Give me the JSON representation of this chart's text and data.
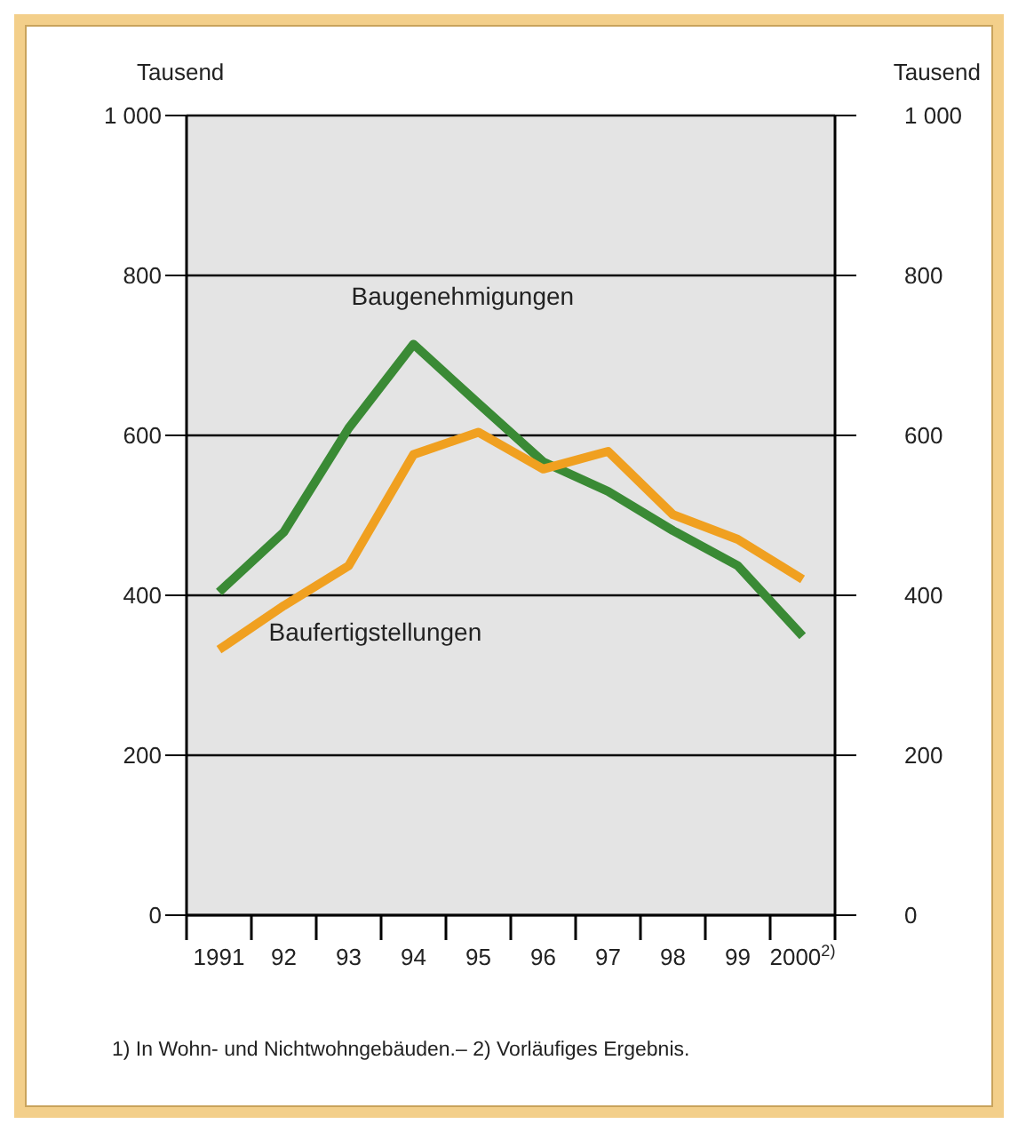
{
  "chart_data": {
    "type": "line",
    "ylabel": "Tausend",
    "y2label": "Tausend",
    "categories": [
      "1991",
      "92",
      "93",
      "94",
      "95",
      "96",
      "97",
      "98",
      "99",
      "2000$^{2)}$"
    ],
    "series": [
      {
        "name": "Baugenehmigungen",
        "color": "#3a8a35",
        "values": [
          404,
          479,
          609,
          714,
          640,
          567,
          530,
          481,
          437,
          349
        ]
      },
      {
        "name": "Baufertigstellungen",
        "color": "#f0a020",
        "values": [
          332,
          387,
          437,
          576,
          604,
          558,
          580,
          501,
          470,
          420
        ]
      }
    ],
    "ylim": [
      0,
      1000
    ],
    "yticks": [
      0,
      200,
      400,
      600,
      800,
      {
        "value": 1000,
        "label": "1 000"
      }
    ],
    "y2lim": [
      0,
      1000
    ],
    "y2ticks": [
      0,
      200,
      400,
      600,
      800,
      {
        "value": 1000,
        "label": "1 000"
      }
    ],
    "grid": "y",
    "annotations": [
      "1) In Wohn- und Nichtwohngebäuden.– 2) Vorläufiges Ergebnis."
    ]
  }
}
